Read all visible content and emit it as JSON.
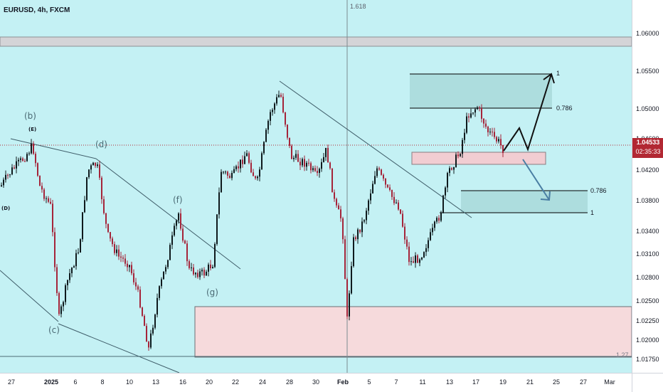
{
  "header": {
    "symbol": "EURUSD, 4h, FXCM"
  },
  "price_axis": {
    "ticks": [
      "1.06000",
      "1.05500",
      "1.05000",
      "1.04600",
      "1.04200",
      "1.03800",
      "1.03400",
      "1.03100",
      "1.02800",
      "1.02500",
      "1.02250",
      "1.02000",
      "1.01750"
    ],
    "current_price": "1.04533",
    "countdown": "02:35:33",
    "price_color": "#b22833"
  },
  "time_axis": {
    "ticks": [
      {
        "label": "27",
        "bold": false
      },
      {
        "label": "2025",
        "bold": true
      },
      {
        "label": "6",
        "bold": false
      },
      {
        "label": "8",
        "bold": false
      },
      {
        "label": "10",
        "bold": false
      },
      {
        "label": "13",
        "bold": false
      },
      {
        "label": "16",
        "bold": false
      },
      {
        "label": "20",
        "bold": false
      },
      {
        "label": "22",
        "bold": false
      },
      {
        "label": "24",
        "bold": false
      },
      {
        "label": "28",
        "bold": false
      },
      {
        "label": "30",
        "bold": false
      },
      {
        "label": "Feb",
        "bold": true
      },
      {
        "label": "5",
        "bold": false
      },
      {
        "label": "7",
        "bold": false
      },
      {
        "label": "11",
        "bold": false
      },
      {
        "label": "13",
        "bold": false
      },
      {
        "label": "17",
        "bold": false
      },
      {
        "label": "19",
        "bold": false
      },
      {
        "label": "21",
        "bold": false
      },
      {
        "label": "25",
        "bold": false
      },
      {
        "label": "27",
        "bold": false
      },
      {
        "label": "Mar",
        "bold": false
      }
    ]
  },
  "waves": {
    "b": "(b)",
    "E": "(E)",
    "d": "(d)",
    "D": "(D)",
    "f": "(f)",
    "g": "(g)",
    "c": "(c)"
  },
  "levels": {
    "fib_vertical": "1.618",
    "up_target": "1",
    "up_fib": "0.786",
    "down_fib": "0.786",
    "down_target": "1",
    "bottom_ext": "1.27"
  },
  "colors": {
    "background": "#c4f1f4",
    "up_candle": "#0f1a1d",
    "down_candle": "#a5253a",
    "resistance_zone": "#d2d3d6",
    "demand_zone": "#f6dadb",
    "target_zone": "#a8d8d8",
    "bull_arrow": "#111111",
    "bear_arrow": "#4a7ea3"
  }
}
